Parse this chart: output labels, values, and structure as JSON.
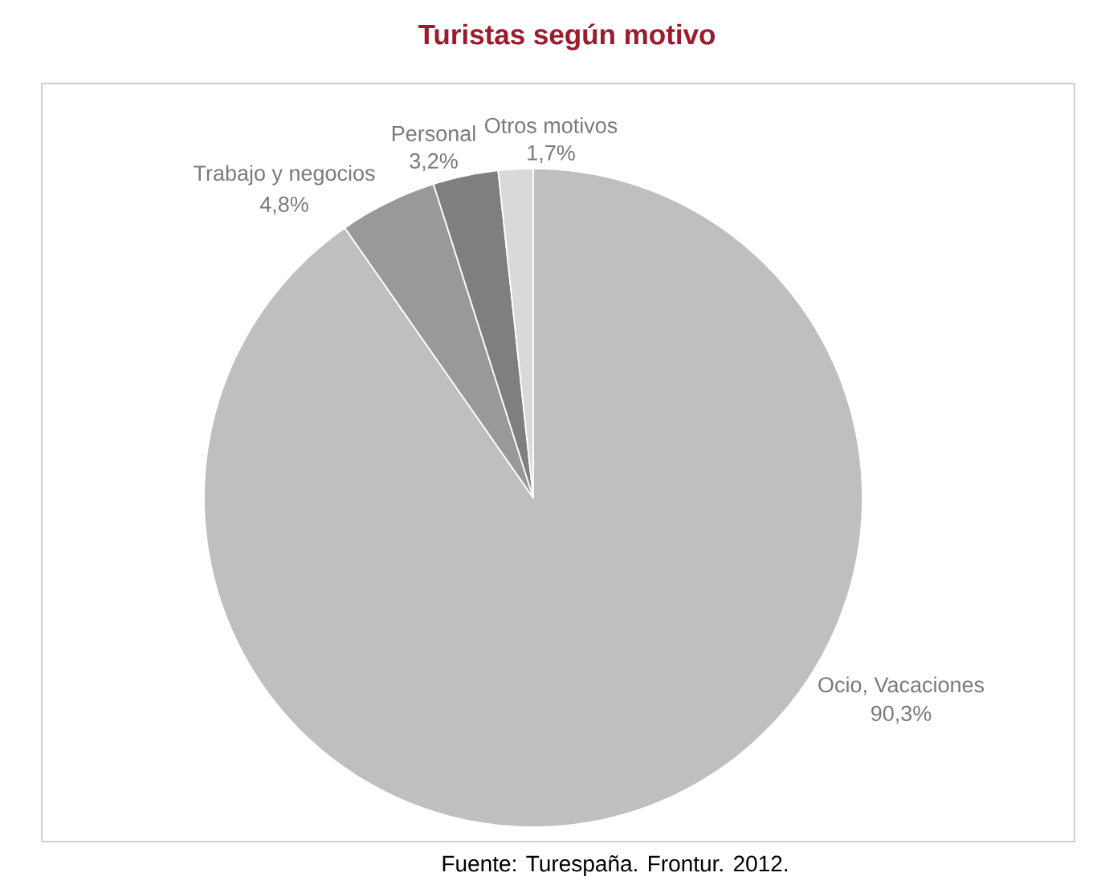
{
  "chart_data": {
    "type": "pie",
    "title": "Turistas según motivo",
    "categories": [
      "Ocio, Vacaciones",
      "Trabajo y negocios",
      "Personal",
      "Otros motivos"
    ],
    "values": [
      90.3,
      4.8,
      3.2,
      1.7
    ],
    "colors": [
      "#bfbfbf",
      "#999999",
      "#7f7f7f",
      "#d9d9d9"
    ],
    "value_labels": [
      "90,3%",
      "4,8%",
      "3,2%",
      "1,7%"
    ],
    "annotations": [
      "Fuente: Turespaña. Frontur. 2012."
    ]
  }
}
